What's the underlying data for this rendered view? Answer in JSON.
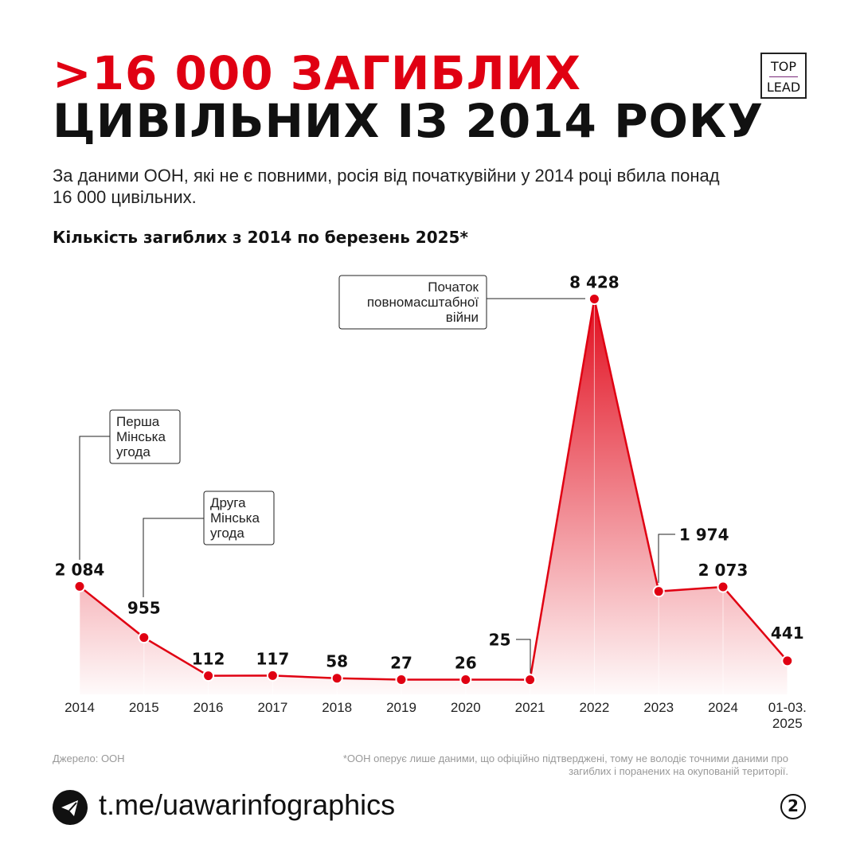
{
  "title_line1": ">16 000 ЗАГИБЛИХ",
  "title_line2": "ЦИВІЛЬНИХ ІЗ 2014 РОКУ",
  "logo": {
    "top": "TOP",
    "bottom": "LEAD"
  },
  "subtitle": "За даними ООН, які не є повними, росія від початкувійни у 2014 році вбила понад 16 000 цивільних.",
  "colors": {
    "accent": "#e00012",
    "text": "#111111"
  },
  "chart_data": {
    "type": "area",
    "title": "Кількість загиблих з 2014 по березень 2025*",
    "categories": [
      "2014",
      "2015",
      "2016",
      "2017",
      "2018",
      "2019",
      "2020",
      "2021",
      "2022",
      "2023",
      "2024",
      "01-03.\n2025"
    ],
    "values": [
      2084,
      955,
      112,
      117,
      58,
      27,
      26,
      25,
      8428,
      1974,
      2073,
      441
    ],
    "data_labels": [
      "2 084",
      "955",
      "112",
      "117",
      "58",
      "27",
      "26",
      "25",
      "8 428",
      "1 974",
      "2 073",
      "441"
    ],
    "annotations": [
      {
        "category": "2014",
        "text": "Перша\nМінська\nугода"
      },
      {
        "category": "2015",
        "text": "Друга\nМінська\nугода"
      },
      {
        "category": "2022",
        "text": "Початок\nповномасштабної\nвійни"
      }
    ],
    "grid": false
  },
  "footer": {
    "source": "Джерело: ООН",
    "note": "*ООН оперує лише даними, що офіційно підтверджені, тому не володіє точними даними про загиблих і поранених на окупованій території.",
    "url": "t.me/uawarinfographics",
    "page": "2",
    "icon": "telegram-icon"
  }
}
